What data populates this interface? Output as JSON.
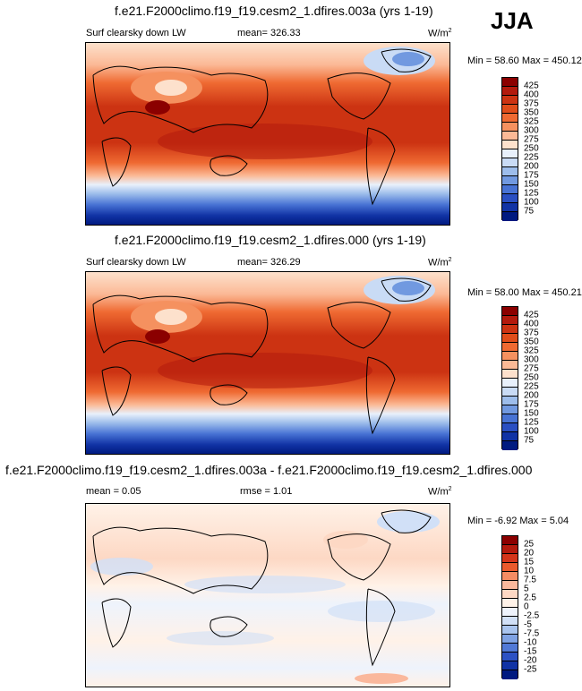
{
  "season": "JJA",
  "panels": [
    {
      "title": "f.e21.F2000climo.f19_f19.cesm2_1.dfires.003a (yrs 1-19)",
      "left_label": "Surf clearsky down LW",
      "mid_label": "mean= 326.33",
      "units": "W/m",
      "units_sup": "2",
      "minmax": "Min =  58.60 Max = 450.12",
      "colorbar": {
        "labels": [
          "425",
          "400",
          "375",
          "350",
          "325",
          "300",
          "275",
          "250",
          "225",
          "200",
          "175",
          "150",
          "125",
          "100",
          "75"
        ],
        "colors": [
          "#8b0000",
          "#b31a0d",
          "#cc3312",
          "#e04d1a",
          "#ef6a32",
          "#f5915f",
          "#fbb996",
          "#fde1cc",
          "#e8f0fb",
          "#c9dbf5",
          "#9dbdeb",
          "#7199e0",
          "#4873d4",
          "#2a4fc2",
          "#1133a5",
          "#001a80"
        ]
      }
    },
    {
      "title": "f.e21.F2000climo.f19_f19.cesm2_1.dfires.000 (yrs 1-19)",
      "left_label": "Surf clearsky down LW",
      "mid_label": "mean= 326.29",
      "units": "W/m",
      "units_sup": "2",
      "minmax": "Min =  58.00 Max = 450.21",
      "colorbar": {
        "labels": [
          "425",
          "400",
          "375",
          "350",
          "325",
          "300",
          "275",
          "250",
          "225",
          "200",
          "175",
          "150",
          "125",
          "100",
          "75"
        ],
        "colors": [
          "#8b0000",
          "#b31a0d",
          "#cc3312",
          "#e04d1a",
          "#ef6a32",
          "#f5915f",
          "#fbb996",
          "#fde1cc",
          "#e8f0fb",
          "#c9dbf5",
          "#9dbdeb",
          "#7199e0",
          "#4873d4",
          "#2a4fc2",
          "#1133a5",
          "#001a80"
        ]
      }
    },
    {
      "title": "f.e21.F2000climo.f19_f19.cesm2_1.dfires.003a - f.e21.F2000climo.f19_f19.cesm2_1.dfires.000",
      "left_label": "mean =   0.05",
      "mid_label": "rmse =   1.01",
      "units": "W/m",
      "units_sup": "2",
      "minmax": "Min =  -6.92 Max =  5.04",
      "colorbar": {
        "labels": [
          "25",
          "20",
          "15",
          "10",
          "7.5",
          "5",
          "2.5",
          "0",
          "-2.5",
          "-5",
          "-7.5",
          "-10",
          "-15",
          "-20",
          "-25"
        ],
        "colors": [
          "#8b0000",
          "#b31a0d",
          "#d4351a",
          "#ea5a2c",
          "#f58c63",
          "#fab89c",
          "#fdd8c4",
          "#fff2e8",
          "#eef3fc",
          "#d1e0f7",
          "#a9c4ee",
          "#7fa2e3",
          "#5179d6",
          "#2d52c4",
          "#1133a5",
          "#001a80"
        ]
      }
    }
  ]
}
